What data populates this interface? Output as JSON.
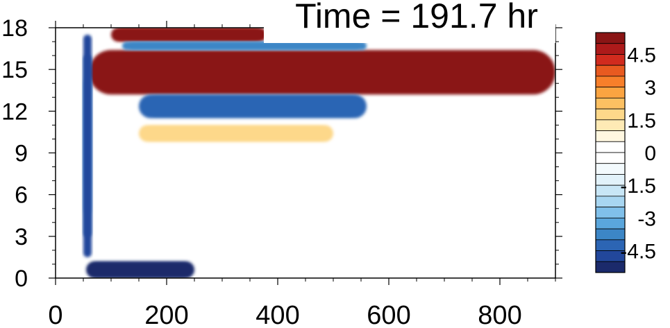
{
  "chart_data": {
    "type": "heatmap",
    "title": "Time = 191.7 hr",
    "xlabel": "",
    "ylabel": "",
    "xlim": [
      0,
      900
    ],
    "ylim": [
      0,
      18
    ],
    "x_ticks": [
      0,
      200,
      400,
      600,
      800
    ],
    "y_ticks": [
      0,
      3,
      6,
      9,
      12,
      15,
      18
    ],
    "colorbar": {
      "placement": "right",
      "min": -5.5,
      "max": 5.5,
      "step": 0.5,
      "tick_labels": [
        "4.5",
        "3",
        "1.5",
        "0",
        "-1.5",
        "-3",
        "-4.5"
      ],
      "tick_values": [
        4.5,
        3,
        1.5,
        0,
        -1.5,
        -3,
        -4.5
      ],
      "colors": [
        "#1b2a6b",
        "#22479b",
        "#2c65b4",
        "#3c86c6",
        "#5aa6dc",
        "#80c0ea",
        "#a8d6f1",
        "#c8e6f6",
        "#e2f2fa",
        "#f3fafd",
        "#ffffff",
        "#ffffff",
        "#fff7e0",
        "#feeab5",
        "#fdd88a",
        "#fcc062",
        "#fba441",
        "#f77f2a",
        "#e85a20",
        "#d12b1e",
        "#ad1a1a",
        "#8a1515"
      ]
    },
    "features": [
      {
        "name": "upper positive band",
        "x": [
          60,
          900
        ],
        "y": [
          13.2,
          16.4
        ],
        "value": 5.5
      },
      {
        "name": "upper negative band",
        "x": [
          150,
          560
        ],
        "y": [
          11.5,
          13.2
        ],
        "value": -4.5
      },
      {
        "name": "top positive band",
        "x": [
          100,
          380
        ],
        "y": [
          17.0,
          18.0
        ],
        "value": 5.0
      },
      {
        "name": "top negative strip",
        "x": [
          120,
          560
        ],
        "y": [
          16.4,
          17.0
        ],
        "value": -4.0
      },
      {
        "name": "vertical negative front",
        "x": [
          50,
          65
        ],
        "y": [
          1.5,
          17.5
        ],
        "value": -5.0
      },
      {
        "name": "bottom negative band",
        "x": [
          55,
          250
        ],
        "y": [
          0.0,
          1.2
        ],
        "value": -5.5
      },
      {
        "name": "mid weak positive band",
        "x": [
          150,
          500
        ],
        "y": [
          9.8,
          11.0
        ],
        "value": 1.5
      }
    ]
  }
}
